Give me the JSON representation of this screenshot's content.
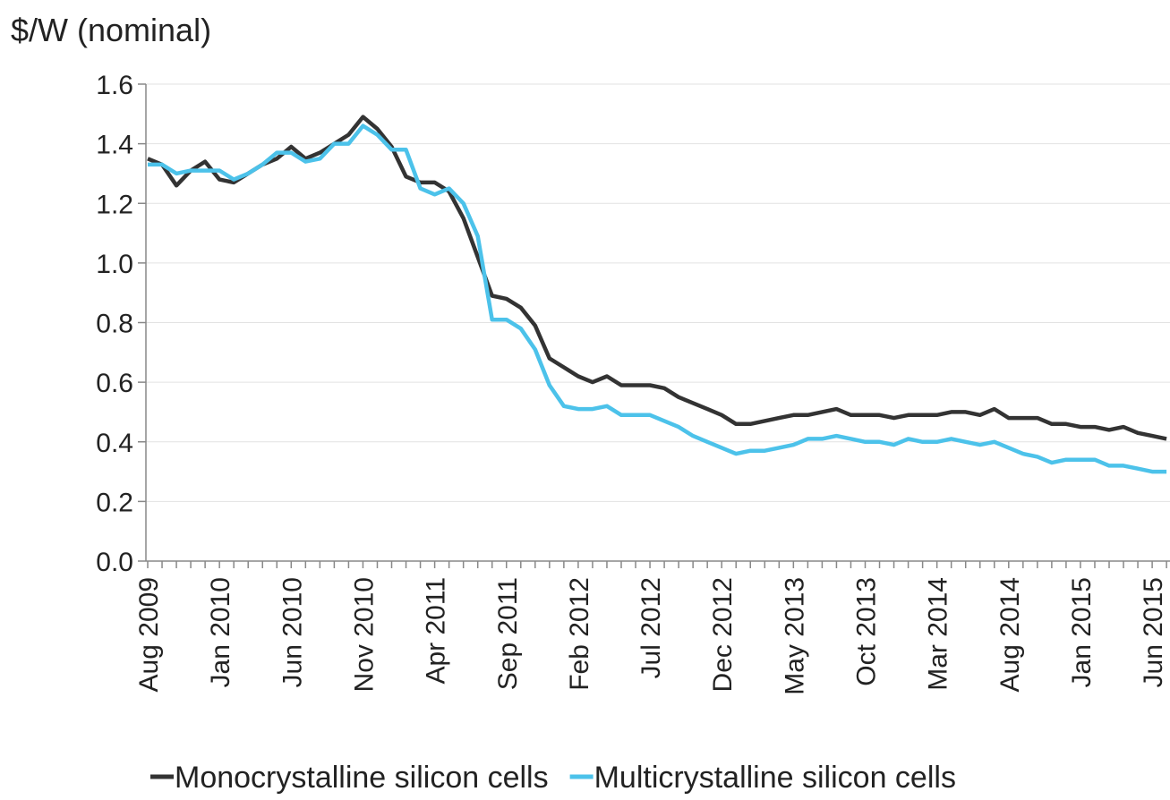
{
  "chart_data": {
    "type": "line",
    "ylabel": "$/W (nominal)",
    "categories": [
      "Aug 2009",
      null,
      null,
      null,
      null,
      "Jan 2010",
      null,
      null,
      null,
      null,
      "Jun 2010",
      null,
      null,
      null,
      null,
      "Nov 2010",
      null,
      null,
      null,
      null,
      "Apr 2011",
      null,
      null,
      null,
      null,
      "Sep 2011",
      null,
      null,
      null,
      null,
      "Feb 2012",
      null,
      null,
      null,
      null,
      "Jul 2012",
      null,
      null,
      null,
      null,
      "Dec 2012",
      null,
      null,
      null,
      null,
      "May 2013",
      null,
      null,
      null,
      null,
      "Oct 2013",
      null,
      null,
      null,
      null,
      "Mar 2014",
      null,
      null,
      null,
      null,
      "Aug 2014",
      null,
      null,
      null,
      null,
      "Jan 2015",
      null,
      null,
      null,
      null,
      "Jun 2015",
      null
    ],
    "series": [
      {
        "name": "Monocrystalline silicon cells",
        "color": "#333333",
        "values": [
          1.35,
          1.33,
          1.26,
          1.31,
          1.34,
          1.28,
          1.27,
          1.3,
          1.33,
          1.35,
          1.39,
          1.35,
          1.37,
          1.4,
          1.43,
          1.49,
          1.45,
          1.39,
          1.29,
          1.27,
          1.27,
          1.24,
          1.15,
          1.02,
          0.89,
          0.88,
          0.85,
          0.79,
          0.68,
          0.65,
          0.62,
          0.6,
          0.62,
          0.59,
          0.59,
          0.59,
          0.58,
          0.55,
          0.53,
          0.51,
          0.49,
          0.46,
          0.46,
          0.47,
          0.48,
          0.49,
          0.49,
          0.5,
          0.51,
          0.49,
          0.49,
          0.49,
          0.48,
          0.49,
          0.49,
          0.49,
          0.5,
          0.5,
          0.49,
          0.51,
          0.48,
          0.48,
          0.48,
          0.46,
          0.46,
          0.45,
          0.45,
          0.44,
          0.45,
          0.43,
          0.42,
          0.41
        ]
      },
      {
        "name": "Multicrystalline silicon cells",
        "color": "#4cc2ea",
        "values": [
          1.33,
          1.33,
          1.3,
          1.31,
          1.31,
          1.31,
          1.28,
          1.3,
          1.33,
          1.37,
          1.37,
          1.34,
          1.35,
          1.4,
          1.4,
          1.46,
          1.43,
          1.38,
          1.38,
          1.25,
          1.23,
          1.25,
          1.2,
          1.09,
          0.81,
          0.81,
          0.78,
          0.71,
          0.59,
          0.52,
          0.51,
          0.51,
          0.52,
          0.49,
          0.49,
          0.49,
          0.47,
          0.45,
          0.42,
          0.4,
          0.38,
          0.36,
          0.37,
          0.37,
          0.38,
          0.39,
          0.41,
          0.41,
          0.42,
          0.41,
          0.4,
          0.4,
          0.39,
          0.41,
          0.4,
          0.4,
          0.41,
          0.4,
          0.39,
          0.4,
          0.38,
          0.36,
          0.35,
          0.33,
          0.34,
          0.34,
          0.34,
          0.32,
          0.32,
          0.31,
          0.3,
          0.3
        ]
      }
    ],
    "ylim": [
      0,
      1.6
    ],
    "yticks": [
      {
        "value": 0,
        "label": "0.0"
      },
      0.2,
      0.4,
      0.6,
      0.8,
      {
        "value": 1,
        "label": "1.0"
      },
      1.2,
      1.4,
      1.6
    ],
    "grid": true,
    "legend": "bottom"
  }
}
